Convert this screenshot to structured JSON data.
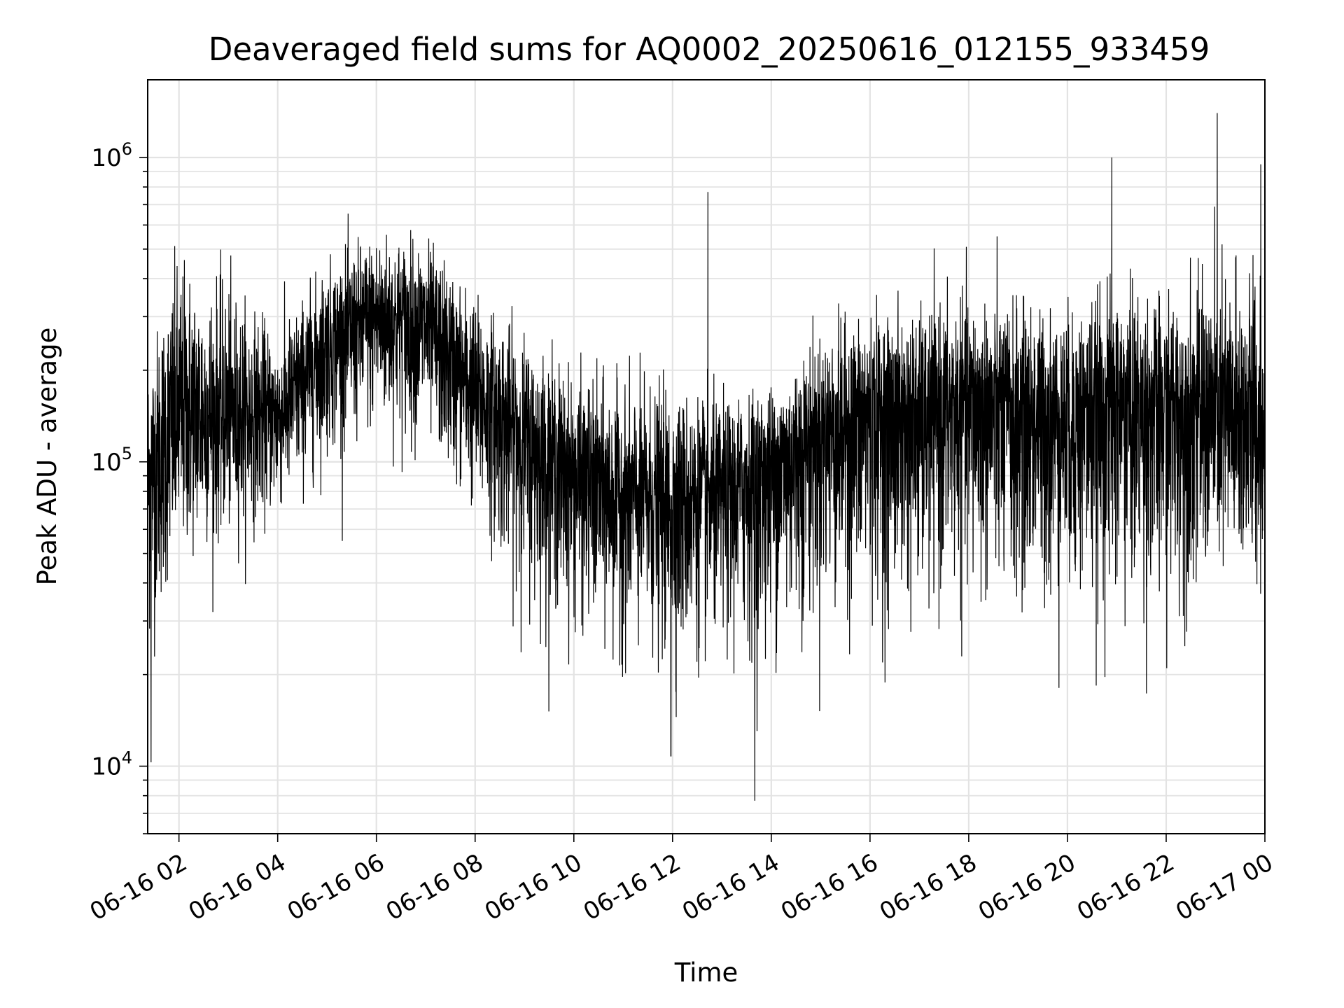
{
  "chart_data": {
    "type": "line",
    "title": "Deaveraged field sums for AQ0002_20250616_012155_933459",
    "xlabel": "Time",
    "ylabel": "Peak ADU - average",
    "yscale": "log",
    "xlim": [
      "2025-06-16 01:22",
      "2025-06-17 00:00"
    ],
    "ylim": [
      6000,
      1800000
    ],
    "grid": true,
    "line_color": "#000000",
    "x_ticks": [
      "06-16 02",
      "06-16 04",
      "06-16 06",
      "06-16 08",
      "06-16 10",
      "06-16 12",
      "06-16 14",
      "06-16 16",
      "06-16 18",
      "06-16 20",
      "06-16 22",
      "06-17 00"
    ],
    "y_ticks": [
      {
        "value": 10000,
        "base": "10",
        "exp": "4"
      },
      {
        "value": 100000,
        "base": "10",
        "exp": "5"
      },
      {
        "value": 1000000,
        "base": "10",
        "exp": "6"
      }
    ],
    "series_envelope": {
      "description_of_values": "approximate upper and lower envelope of the dense noisy trace at each hour",
      "hours": [
        1.37,
        2,
        3,
        4,
        5,
        6,
        7,
        8,
        9,
        10,
        11,
        12,
        13,
        14,
        15,
        16,
        17,
        18,
        19,
        20,
        21,
        22,
        23,
        24
      ],
      "upper": [
        280000,
        600000,
        450000,
        300000,
        500000,
        650000,
        600000,
        400000,
        300000,
        220000,
        200000,
        200000,
        180000,
        200000,
        300000,
        350000,
        350000,
        400000,
        380000,
        350000,
        450000,
        400000,
        500000,
        700000
      ],
      "lower": [
        20000,
        40000,
        50000,
        60000,
        90000,
        110000,
        100000,
        60000,
        30000,
        25000,
        20000,
        18000,
        20000,
        20000,
        25000,
        25000,
        25000,
        30000,
        25000,
        25000,
        25000,
        25000,
        30000,
        40000
      ],
      "center": [
        90000,
        140000,
        140000,
        140000,
        250000,
        300000,
        280000,
        170000,
        120000,
        90000,
        80000,
        75000,
        80000,
        100000,
        130000,
        150000,
        150000,
        160000,
        150000,
        150000,
        160000,
        150000,
        150000,
        110000
      ]
    },
    "notable_points": [
      {
        "time": "2025-06-16 01:26",
        "value": 10300
      },
      {
        "time": "2025-06-16 11:58",
        "value": 10800
      },
      {
        "time": "2025-06-16 12:43",
        "value": 770000
      },
      {
        "time": "2025-06-16 13:40",
        "value": 7700
      },
      {
        "time": "2025-06-16 20:54",
        "value": 1000000
      },
      {
        "time": "2025-06-16 23:02",
        "value": 1400000
      },
      {
        "time": "2025-06-16 23:55",
        "value": 950000
      }
    ]
  }
}
